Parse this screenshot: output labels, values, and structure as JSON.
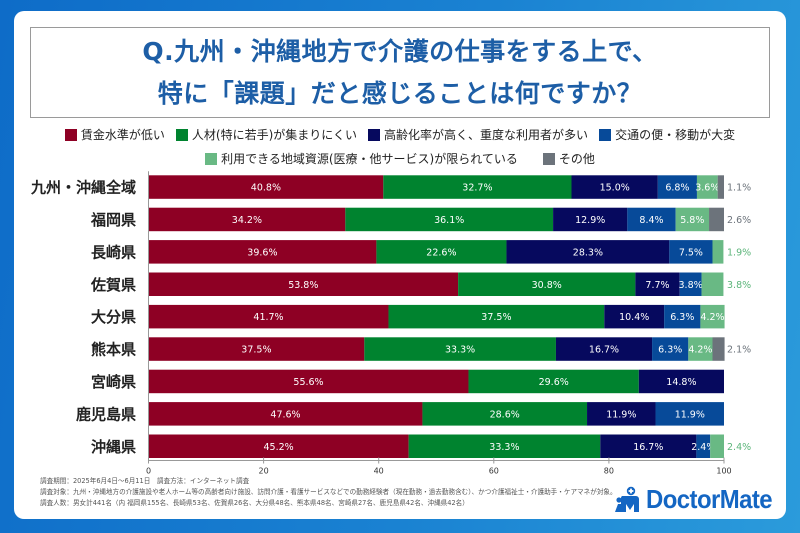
{
  "header": {
    "title_line1": "Q.九州・沖縄地方で介護の仕事をする上で、",
    "title_line2": "特に「課題」だと感じることは何ですか？"
  },
  "chart_data": {
    "type": "bar",
    "orientation": "horizontal",
    "stacked": true,
    "title": "Q.九州・沖縄地方で介護の仕事をする上で、特に「課題」だと感じることは何ですか？",
    "xlabel": "",
    "ylabel": "",
    "xlim": [
      0,
      100
    ],
    "xticks": [
      0,
      20,
      40,
      60,
      80,
      100
    ],
    "xtick_labels": [
      "0",
      "20",
      "40",
      "60",
      "80",
      "100"
    ],
    "grid": false,
    "legend_position": "top",
    "categories": [
      "九州・沖縄全域",
      "福岡県",
      "長崎県",
      "佐賀県",
      "大分県",
      "熊本県",
      "宮崎県",
      "鹿児島県",
      "沖縄県"
    ],
    "series": [
      {
        "name": "賃金水準が低い",
        "color": "#8e0024",
        "label_color": "#ffffff",
        "values": [
          40.8,
          34.2,
          39.6,
          53.8,
          41.7,
          37.5,
          55.6,
          47.6,
          45.2
        ],
        "value_labels": [
          "40.8%",
          "34.2%",
          "39.6%",
          "53.8%",
          "41.7%",
          "37.5%",
          "55.6%",
          "47.6%",
          "45.2%"
        ]
      },
      {
        "name": "人材(特に若手)が集まりにくい",
        "color": "#00832f",
        "label_color": "#ffffff",
        "values": [
          32.7,
          36.1,
          22.6,
          30.8,
          37.5,
          33.3,
          29.6,
          28.6,
          33.3
        ],
        "value_labels": [
          "32.7%",
          "36.1%",
          "22.6%",
          "30.8%",
          "37.5%",
          "33.3%",
          "29.6%",
          "28.6%",
          "33.3%"
        ]
      },
      {
        "name": "高齢化率が高く、重度な利用者が多い",
        "color": "#06095e",
        "label_color": "#ffffff",
        "values": [
          15.0,
          12.9,
          28.3,
          7.7,
          10.4,
          16.7,
          14.8,
          11.9,
          16.7
        ],
        "value_labels": [
          "15.0%",
          "12.9%",
          "28.3%",
          "7.7%",
          "10.4%",
          "16.7%",
          "14.8%",
          "11.9%",
          "16.7%"
        ]
      },
      {
        "name": "交通の便・移動が大変",
        "color": "#074a99",
        "label_color": "#ffffff",
        "values": [
          6.8,
          8.4,
          7.5,
          3.8,
          6.3,
          6.3,
          null,
          11.9,
          2.4
        ],
        "value_labels": [
          "6.8%",
          "8.4%",
          "7.5%",
          "3.8%",
          "6.3%",
          "6.3%",
          null,
          "11.9%",
          "2.4%"
        ]
      },
      {
        "name": "利用できる地域資源(医療・他サービス)が限られている",
        "color": "#69b984",
        "label_color": "#5cb57a",
        "values": [
          3.6,
          5.8,
          1.9,
          3.8,
          4.2,
          4.2,
          null,
          null,
          2.4
        ],
        "value_labels": [
          "3.6%",
          "5.8%",
          "1.9%",
          "3.8%",
          "4.2%",
          "4.2%",
          null,
          null,
          "2.4%"
        ]
      },
      {
        "name": "その他",
        "color": "#6c737b",
        "label_color": "#6c737b",
        "values": [
          1.1,
          2.6,
          null,
          null,
          null,
          2.1,
          null,
          null,
          null
        ],
        "value_labels": [
          "1.1%",
          "2.6%",
          null,
          null,
          null,
          "2.1%",
          null,
          null,
          null
        ]
      }
    ],
    "outside_labels": [
      {
        "row": 0,
        "series": 5
      },
      {
        "row": 1,
        "series": 5
      },
      {
        "row": 2,
        "series": 4
      },
      {
        "row": 3,
        "series": 4
      },
      {
        "row": 5,
        "series": 5
      },
      {
        "row": 8,
        "series": 4
      }
    ]
  },
  "footer": {
    "line1": "調査期間：2025年6月4日〜6月11日　調査方法：インターネット調査",
    "line2": "調査対象：九州・沖縄地方の介護施設や老人ホーム等の高齢者向け施設、訪問介護・看護サービスなどでの勤務経験者（現在勤務・過去勤務含む）、かつ介護福祉士・介護助手・ケアマネが対象。",
    "line3": "調査人数：男女計441名（内 福岡県155名、長崎県53名、佐賀県26名、大分県48名、熊本県48名、宮崎県27名、鹿児島県42名、沖縄県42名）"
  },
  "logo": {
    "text": "DoctorMate",
    "color": "#1466c3"
  }
}
